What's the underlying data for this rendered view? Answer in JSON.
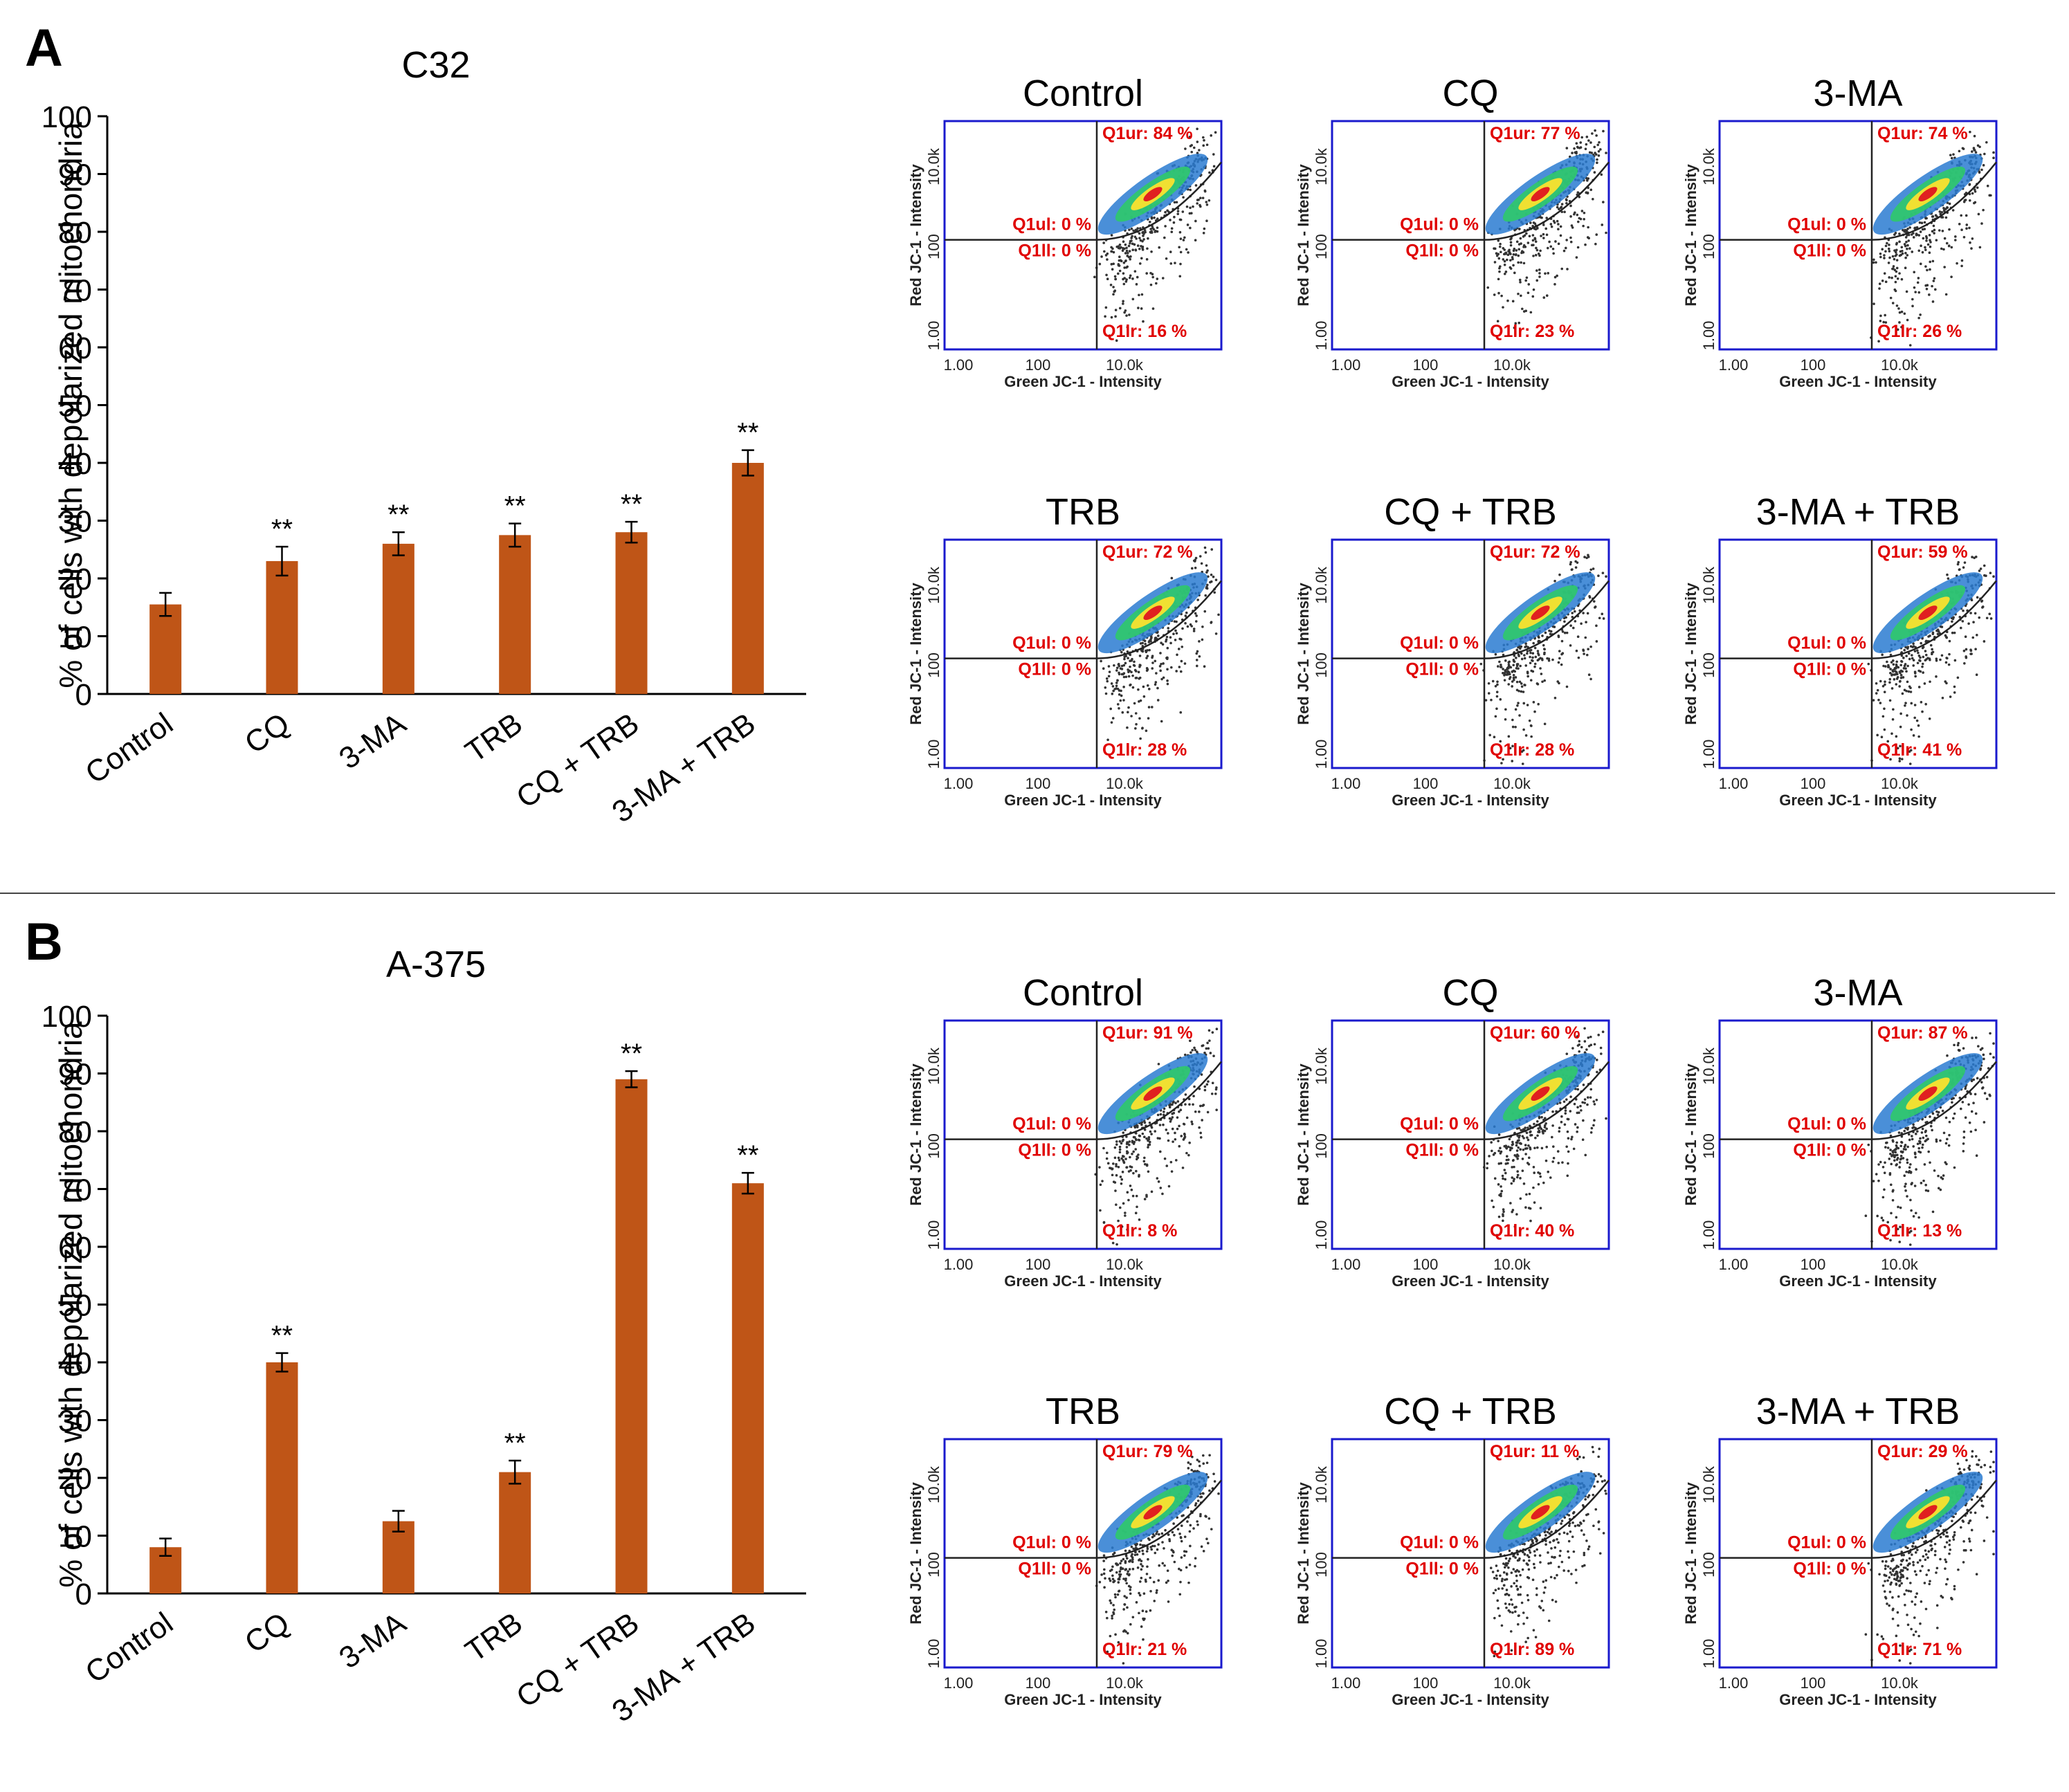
{
  "colors": {
    "bar": "#bf5517",
    "axis": "#000000",
    "gate": "#1a1acd",
    "quad_text": "#e00000",
    "dots": "#333333"
  },
  "panels": [
    {
      "letter": "A",
      "chart_data": {
        "type": "bar",
        "title": "C32",
        "ylabel": "% of cells with depolarized mitochondria",
        "xlabel": "",
        "ylim": [
          0,
          100
        ],
        "yticks": [
          0,
          10,
          20,
          30,
          40,
          50,
          60,
          70,
          80,
          90,
          100
        ],
        "categories": [
          "Control",
          "CQ",
          "3-MA",
          "TRB",
          "CQ + TRB",
          "3-MA + TRB"
        ],
        "values": [
          15.5,
          23,
          26,
          27.5,
          28,
          40
        ],
        "errors": [
          2,
          2.5,
          2,
          2,
          1.8,
          2.2
        ],
        "significance": [
          "",
          "**",
          "**",
          "**",
          "**",
          "**"
        ]
      },
      "flow_plots": [
        {
          "title": "Control",
          "ur": "Q1ur: 84 %",
          "ul": "Q1ul: 0 %",
          "ll": "Q1ll: 0 %",
          "lr": "Q1lr: 16 %"
        },
        {
          "title": "CQ",
          "ur": "Q1ur: 77 %",
          "ul": "Q1ul: 0 %",
          "ll": "Q1ll: 0 %",
          "lr": "Q1lr: 23 %"
        },
        {
          "title": "3-MA",
          "ur": "Q1ur: 74 %",
          "ul": "Q1ul: 0 %",
          "ll": "Q1ll: 0 %",
          "lr": "Q1lr: 26 %"
        },
        {
          "title": "TRB",
          "ur": "Q1ur: 72 %",
          "ul": "Q1ul: 0 %",
          "ll": "Q1ll: 0 %",
          "lr": "Q1lr: 28 %"
        },
        {
          "title": "CQ + TRB",
          "ur": "Q1ur: 72 %",
          "ul": "Q1ul: 0 %",
          "ll": "Q1ll: 0 %",
          "lr": "Q1lr: 28 %"
        },
        {
          "title": "3-MA + TRB",
          "ur": "Q1ur: 59 %",
          "ul": "Q1ul: 0 %",
          "ll": "Q1ll: 0 %",
          "lr": "Q1lr: 41 %"
        }
      ]
    },
    {
      "letter": "B",
      "chart_data": {
        "type": "bar",
        "title": "A-375",
        "ylabel": "% of cells with depolarized mitochondria",
        "xlabel": "",
        "ylim": [
          0,
          100
        ],
        "yticks": [
          0,
          10,
          20,
          30,
          40,
          50,
          60,
          70,
          80,
          90,
          100
        ],
        "categories": [
          "Control",
          "CQ",
          "3-MA",
          "TRB",
          "CQ + TRB",
          "3-MA + TRB"
        ],
        "values": [
          8,
          40,
          12.5,
          21,
          89,
          71
        ],
        "errors": [
          1.5,
          1.6,
          1.8,
          2,
          1.4,
          1.8
        ],
        "significance": [
          "",
          "**",
          "",
          "**",
          "**",
          "**"
        ]
      },
      "flow_plots": [
        {
          "title": "Control",
          "ur": "Q1ur: 91 %",
          "ul": "Q1ul: 0 %",
          "ll": "Q1ll: 0 %",
          "lr": "Q1lr: 8 %"
        },
        {
          "title": "CQ",
          "ur": "Q1ur: 60 %",
          "ul": "Q1ul: 0 %",
          "ll": "Q1ll: 0 %",
          "lr": "Q1lr: 40 %"
        },
        {
          "title": "3-MA",
          "ur": "Q1ur: 87 %",
          "ul": "Q1ul: 0 %",
          "ll": "Q1ll: 0 %",
          "lr": "Q1lr: 13 %"
        },
        {
          "title": "TRB",
          "ur": "Q1ur: 79 %",
          "ul": "Q1ul: 0 %",
          "ll": "Q1ll: 0 %",
          "lr": "Q1lr: 21 %"
        },
        {
          "title": "CQ + TRB",
          "ur": "Q1ur: 11 %",
          "ul": "Q1ul: 0 %",
          "ll": "Q1ll: 0 %",
          "lr": "Q1lr: 89 %"
        },
        {
          "title": "3-MA + TRB",
          "ur": "Q1ur: 29 %",
          "ul": "Q1ul: 0 %",
          "ll": "Q1ll: 0 %",
          "lr": "Q1lr: 71 %"
        }
      ]
    }
  ],
  "flow_axes": {
    "xlabel": "Green JC-1 - Intensity",
    "ylabel": "Red JC-1 - Intensity",
    "xticks": [
      "1.00",
      "100",
      "10.0k"
    ],
    "yticks": [
      "1.00",
      "100",
      "10.0k"
    ]
  }
}
